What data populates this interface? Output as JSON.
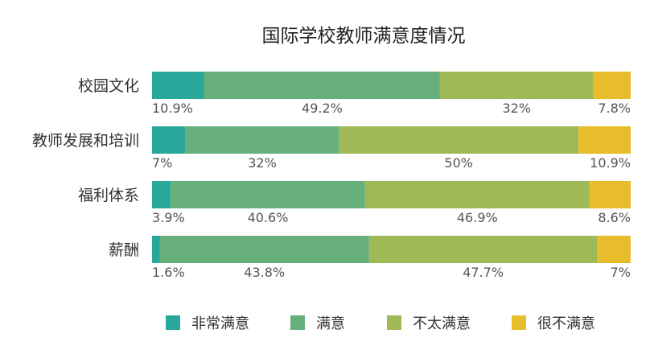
{
  "chart_data": {
    "type": "bar",
    "orientation": "horizontal",
    "stacked": true,
    "normalized": true,
    "title": "国际学校教师满意度情况",
    "categories": [
      "校园文化",
      "教师发展和培训",
      "福利体系",
      "薪酬"
    ],
    "series": [
      {
        "name": "非常满意",
        "color": "#2aa79b",
        "values": [
          10.9,
          7,
          3.9,
          1.6
        ],
        "labels": [
          "10.9%",
          "7%",
          "3.9%",
          "1.6%"
        ]
      },
      {
        "name": "满意",
        "color": "#67b07b",
        "values": [
          49.2,
          32,
          40.6,
          43.8
        ],
        "labels": [
          "49.2%",
          "32%",
          "40.6%",
          "43.8%"
        ]
      },
      {
        "name": "不太满意",
        "color": "#9eb956",
        "values": [
          32,
          50,
          46.9,
          47.7
        ],
        "labels": [
          "32%",
          "50%",
          "46.9%",
          "47.7%"
        ]
      },
      {
        "name": "很不满意",
        "color": "#e7bd2c",
        "values": [
          7.8,
          10.9,
          8.6,
          7
        ],
        "labels": [
          "7.8%",
          "10.9%",
          "8.6%",
          "7%"
        ]
      }
    ],
    "grid": false,
    "legend_position": "bottom"
  }
}
